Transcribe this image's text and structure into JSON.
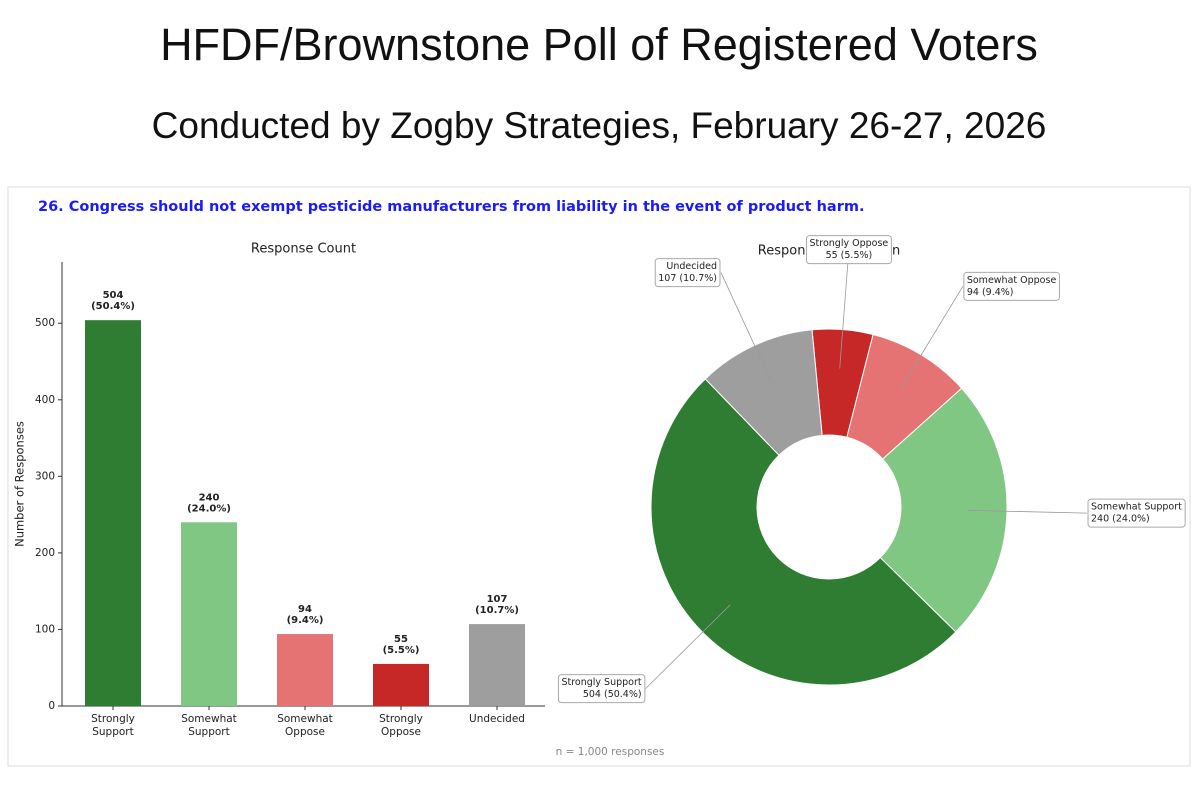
{
  "header": {
    "title": "HFDF/Brownstone Poll of Registered Voters",
    "subtitle": "Conducted by Zogby Strategies, February 26-27, 2026"
  },
  "question": "26. Congress should not exempt pesticide manufacturers from liability in the event of product harm.",
  "note": "n = 1,000 responses",
  "chart_data": [
    {
      "type": "bar",
      "title": "Response Count",
      "y_label": "Number of Responses",
      "categories": [
        "Strongly Support",
        "Somewhat Support",
        "Somewhat Oppose",
        "Strongly Oppose",
        "Undecided"
      ],
      "values": [
        504,
        240,
        94,
        55,
        107
      ],
      "value_labels": [
        "504 (50.4%)",
        "240 (24.0%)",
        "94 (9.4%)",
        "55 (5.5%)",
        "107 (10.7%)"
      ],
      "colors": [
        "#2e7d32",
        "#81c784",
        "#e57373",
        "#c62828",
        "#9e9e9e"
      ],
      "ylim": [
        0,
        580
      ],
      "yticks": [
        0,
        100,
        200,
        300,
        400,
        500
      ]
    },
    {
      "type": "pie",
      "title": "Response Distribution",
      "donut": true,
      "startangle": 134,
      "categories": [
        "Strongly Support",
        "Somewhat Support",
        "Somewhat Oppose",
        "Strongly Oppose",
        "Undecided"
      ],
      "values": [
        504,
        240,
        94,
        55,
        107
      ],
      "value_labels": [
        "504 (50.4%)",
        "240 (24.0%)",
        "94 (9.4%)",
        "55 (5.5%)",
        "107 (10.7%)"
      ],
      "colors": [
        "#2e7d32",
        "#81c784",
        "#e57373",
        "#c62828",
        "#9e9e9e"
      ]
    }
  ]
}
